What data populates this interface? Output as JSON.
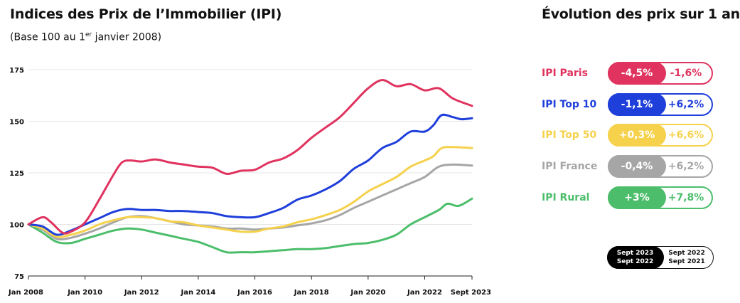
{
  "header": {
    "title": "Indices des Prix de l’Immobilier (IPI)",
    "subtitle_pre": "(Base 100 au 1",
    "subtitle_sup": "er",
    "subtitle_post": " janvier 2008)",
    "right_title": "Évolution des prix sur 1 an"
  },
  "chart_data": {
    "type": "line",
    "title": "Indices des Prix de l’Immobilier (IPI)",
    "subtitle": "(Base 100 au 1er janvier 2008)",
    "xlabel": "",
    "ylabel": "",
    "ylim": [
      75,
      175
    ],
    "yticks": [
      75,
      100,
      125,
      150,
      175
    ],
    "xlim": [
      2008,
      2023.67
    ],
    "xticks": [
      {
        "label": "Jan 2008",
        "x": 2008
      },
      {
        "label": "Jan 2010",
        "x": 2010
      },
      {
        "label": "Jan 2012",
        "x": 2012
      },
      {
        "label": "Jan 2014",
        "x": 2014
      },
      {
        "label": "Jan 2016",
        "x": 2016
      },
      {
        "label": "Jan 2018",
        "x": 2018
      },
      {
        "label": "Jan 2020",
        "x": 2020
      },
      {
        "label": "Jan 2022",
        "x": 2022
      },
      {
        "label": "Sept 2023",
        "x": 2023.67
      }
    ],
    "grid": true,
    "series": [
      {
        "name": "IPI Paris",
        "color": "#E0335F",
        "points": [
          [
            2008,
            100
          ],
          [
            2008.5,
            103.5
          ],
          [
            2008.8,
            101
          ],
          [
            2009.2,
            96
          ],
          [
            2009.5,
            96.5
          ],
          [
            2010,
            101
          ],
          [
            2010.5,
            112
          ],
          [
            2011,
            124
          ],
          [
            2011.3,
            130
          ],
          [
            2011.6,
            131
          ],
          [
            2012,
            130.5
          ],
          [
            2012.5,
            131.5
          ],
          [
            2013,
            130
          ],
          [
            2013.5,
            129
          ],
          [
            2014,
            128
          ],
          [
            2014.5,
            127.5
          ],
          [
            2015,
            124.5
          ],
          [
            2015.5,
            126
          ],
          [
            2016,
            126.5
          ],
          [
            2016.5,
            130
          ],
          [
            2017,
            132
          ],
          [
            2017.5,
            136
          ],
          [
            2018,
            142
          ],
          [
            2018.5,
            147
          ],
          [
            2019,
            152
          ],
          [
            2019.5,
            159
          ],
          [
            2020,
            166
          ],
          [
            2020.5,
            170
          ],
          [
            2021,
            167
          ],
          [
            2021.5,
            168
          ],
          [
            2022,
            165
          ],
          [
            2022.5,
            166
          ],
          [
            2023,
            161
          ],
          [
            2023.67,
            157.5
          ]
        ]
      },
      {
        "name": "IPI Top 10",
        "color": "#1F3FDB",
        "points": [
          [
            2008,
            100
          ],
          [
            2008.5,
            99
          ],
          [
            2009,
            95
          ],
          [
            2009.5,
            97
          ],
          [
            2010,
            100
          ],
          [
            2010.5,
            103
          ],
          [
            2011,
            106
          ],
          [
            2011.5,
            107.5
          ],
          [
            2012,
            107
          ],
          [
            2012.5,
            107
          ],
          [
            2013,
            106.5
          ],
          [
            2013.5,
            106.5
          ],
          [
            2014,
            106
          ],
          [
            2014.5,
            105.5
          ],
          [
            2015,
            104
          ],
          [
            2015.5,
            103.5
          ],
          [
            2016,
            103.5
          ],
          [
            2016.5,
            105.5
          ],
          [
            2017,
            108
          ],
          [
            2017.5,
            112
          ],
          [
            2018,
            114
          ],
          [
            2018.5,
            117
          ],
          [
            2019,
            121
          ],
          [
            2019.5,
            127
          ],
          [
            2020,
            131
          ],
          [
            2020.5,
            137
          ],
          [
            2021,
            140
          ],
          [
            2021.5,
            145
          ],
          [
            2022,
            145
          ],
          [
            2022.3,
            148
          ],
          [
            2022.6,
            153
          ],
          [
            2023,
            152
          ],
          [
            2023.3,
            151
          ],
          [
            2023.67,
            151.5
          ]
        ]
      },
      {
        "name": "IPI Top 50",
        "color": "#F5D14C",
        "points": [
          [
            2008,
            100
          ],
          [
            2008.5,
            98
          ],
          [
            2009,
            94
          ],
          [
            2009.5,
            95
          ],
          [
            2010,
            97
          ],
          [
            2010.5,
            100
          ],
          [
            2011,
            102
          ],
          [
            2011.5,
            103.5
          ],
          [
            2012,
            103.5
          ],
          [
            2012.5,
            103
          ],
          [
            2013,
            101.5
          ],
          [
            2013.5,
            101
          ],
          [
            2014,
            99.5
          ],
          [
            2014.5,
            98.5
          ],
          [
            2015,
            97.5
          ],
          [
            2015.5,
            96.5
          ],
          [
            2016,
            96.5
          ],
          [
            2016.5,
            98
          ],
          [
            2017,
            99
          ],
          [
            2017.5,
            101
          ],
          [
            2018,
            102.5
          ],
          [
            2018.5,
            104.5
          ],
          [
            2019,
            107
          ],
          [
            2019.5,
            111
          ],
          [
            2020,
            116
          ],
          [
            2020.5,
            119.5
          ],
          [
            2021,
            123
          ],
          [
            2021.5,
            128
          ],
          [
            2022,
            131
          ],
          [
            2022.3,
            133
          ],
          [
            2022.6,
            137
          ],
          [
            2023,
            137.5
          ],
          [
            2023.67,
            137
          ]
        ]
      },
      {
        "name": "IPI France",
        "color": "#A6A6A6",
        "points": [
          [
            2008,
            100
          ],
          [
            2008.5,
            97.5
          ],
          [
            2009,
            93
          ],
          [
            2009.5,
            93.5
          ],
          [
            2010,
            95.5
          ],
          [
            2010.5,
            98
          ],
          [
            2011,
            101
          ],
          [
            2011.5,
            103.5
          ],
          [
            2012,
            104
          ],
          [
            2012.5,
            103
          ],
          [
            2013,
            101.5
          ],
          [
            2013.5,
            100
          ],
          [
            2014,
            99.5
          ],
          [
            2014.5,
            99
          ],
          [
            2015,
            98
          ],
          [
            2015.5,
            98
          ],
          [
            2016,
            97.5
          ],
          [
            2016.5,
            98
          ],
          [
            2017,
            98.5
          ],
          [
            2017.5,
            99.5
          ],
          [
            2018,
            100.5
          ],
          [
            2018.5,
            102
          ],
          [
            2019,
            104.5
          ],
          [
            2019.5,
            108
          ],
          [
            2020,
            111
          ],
          [
            2020.5,
            114
          ],
          [
            2021,
            117
          ],
          [
            2021.5,
            120
          ],
          [
            2022,
            123
          ],
          [
            2022.5,
            128
          ],
          [
            2023,
            129
          ],
          [
            2023.67,
            128.5
          ]
        ]
      },
      {
        "name": "IPI Rural",
        "color": "#4CBE6B",
        "points": [
          [
            2008,
            100
          ],
          [
            2008.5,
            96
          ],
          [
            2009,
            91.5
          ],
          [
            2009.5,
            91
          ],
          [
            2010,
            93
          ],
          [
            2010.5,
            95
          ],
          [
            2011,
            97
          ],
          [
            2011.5,
            98
          ],
          [
            2012,
            97.5
          ],
          [
            2012.5,
            96
          ],
          [
            2013,
            94.5
          ],
          [
            2013.5,
            93
          ],
          [
            2014,
            91.5
          ],
          [
            2014.5,
            89
          ],
          [
            2015,
            86.5
          ],
          [
            2015.5,
            86.5
          ],
          [
            2016,
            86.5
          ],
          [
            2016.5,
            87
          ],
          [
            2017,
            87.5
          ],
          [
            2017.5,
            88
          ],
          [
            2018,
            88
          ],
          [
            2018.5,
            88.5
          ],
          [
            2019,
            89.5
          ],
          [
            2019.5,
            90.5
          ],
          [
            2020,
            91
          ],
          [
            2020.5,
            92.5
          ],
          [
            2021,
            95
          ],
          [
            2021.5,
            100
          ],
          [
            2022,
            103.5
          ],
          [
            2022.5,
            107
          ],
          [
            2022.8,
            110
          ],
          [
            2023.2,
            109
          ],
          [
            2023.67,
            112.5
          ]
        ]
      }
    ]
  },
  "evolution": {
    "rows": [
      {
        "name": "IPI Paris",
        "color": "#E0335F",
        "a": "-4,5%",
        "b": "-1,6%"
      },
      {
        "name": "IPI Top 10",
        "color": "#1F3FDB",
        "a": "-1,1%",
        "b": "+6,2%"
      },
      {
        "name": "IPI Top 50",
        "color": "#F5D14C",
        "a": "+0,3%",
        "b": "+6,6%"
      },
      {
        "name": "IPI France",
        "color": "#A6A6A6",
        "a": "-0,4%",
        "b": "+6,2%"
      },
      {
        "name": "IPI Rural",
        "color": "#4CBE6B",
        "a": "+3%",
        "b": "+7,8%"
      }
    ],
    "legend": {
      "a_line1": "Sept 2023",
      "a_line2": "Sept 2022",
      "b_line1": "Sept 2022",
      "b_line2": "Sept 2021"
    }
  }
}
